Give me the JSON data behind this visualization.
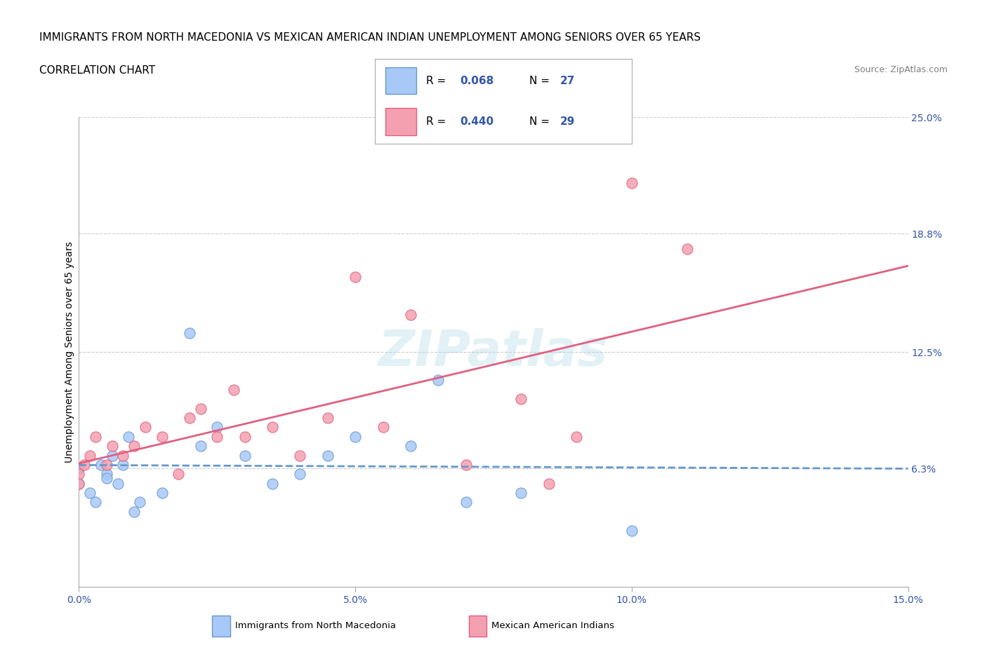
{
  "title1": "IMMIGRANTS FROM NORTH MACEDONIA VS MEXICAN AMERICAN INDIAN UNEMPLOYMENT AMONG SENIORS OVER 65 YEARS",
  "title2": "CORRELATION CHART",
  "source": "Source: ZipAtlas.com",
  "ylabel": "Unemployment Among Seniors over 65 years",
  "xlim": [
    0.0,
    15.0
  ],
  "ylim": [
    0.0,
    25.0
  ],
  "x_ticks": [
    0.0,
    5.0,
    10.0,
    15.0
  ],
  "x_tick_labels": [
    "0.0%",
    "5.0%",
    "10.0%",
    "15.0%"
  ],
  "y_ticks_right": [
    6.3,
    12.5,
    18.8,
    25.0
  ],
  "y_tick_labels_right": [
    "6.3%",
    "12.5%",
    "18.8%",
    "25.0%"
  ],
  "watermark": "ZIPatlas",
  "series1_label": "Immigrants from North Macedonia",
  "series1_R": "0.068",
  "series1_N": "27",
  "series1_color": "#a8c8f8",
  "series1_x": [
    0.0,
    0.0,
    0.2,
    0.3,
    0.4,
    0.5,
    0.5,
    0.6,
    0.7,
    0.8,
    0.9,
    1.0,
    1.1,
    1.5,
    2.0,
    2.2,
    2.5,
    3.0,
    3.5,
    4.0,
    4.5,
    5.0,
    6.0,
    6.5,
    7.0,
    8.0,
    10.0
  ],
  "series1_y": [
    6.3,
    5.5,
    5.0,
    4.5,
    6.5,
    6.0,
    5.8,
    7.0,
    5.5,
    6.5,
    8.0,
    4.0,
    4.5,
    5.0,
    13.5,
    7.5,
    8.5,
    7.0,
    5.5,
    6.0,
    7.0,
    8.0,
    7.5,
    11.0,
    4.5,
    5.0,
    3.0
  ],
  "series2_label": "Mexican American Indians",
  "series2_R": "0.440",
  "series2_N": "29",
  "series2_color": "#f4a0b0",
  "series2_x": [
    0.0,
    0.0,
    0.1,
    0.2,
    0.3,
    0.5,
    0.6,
    0.8,
    1.0,
    1.2,
    1.5,
    1.8,
    2.0,
    2.2,
    2.5,
    2.8,
    3.0,
    3.5,
    4.0,
    4.5,
    5.0,
    5.5,
    6.0,
    7.0,
    8.0,
    8.5,
    9.0,
    10.0,
    11.0
  ],
  "series2_y": [
    6.0,
    5.5,
    6.5,
    7.0,
    8.0,
    6.5,
    7.5,
    7.0,
    7.5,
    8.5,
    8.0,
    6.0,
    9.0,
    9.5,
    8.0,
    10.5,
    8.0,
    8.5,
    7.0,
    9.0,
    16.5,
    8.5,
    14.5,
    6.5,
    10.0,
    5.5,
    8.0,
    21.5,
    18.0
  ],
  "grid_color": "#cccccc",
  "background_color": "#ffffff",
  "trend1_color": "#6699cc",
  "trend2_color": "#e06080",
  "title_fontsize": 11,
  "axis_label_fontsize": 10,
  "tick_fontsize": 10
}
